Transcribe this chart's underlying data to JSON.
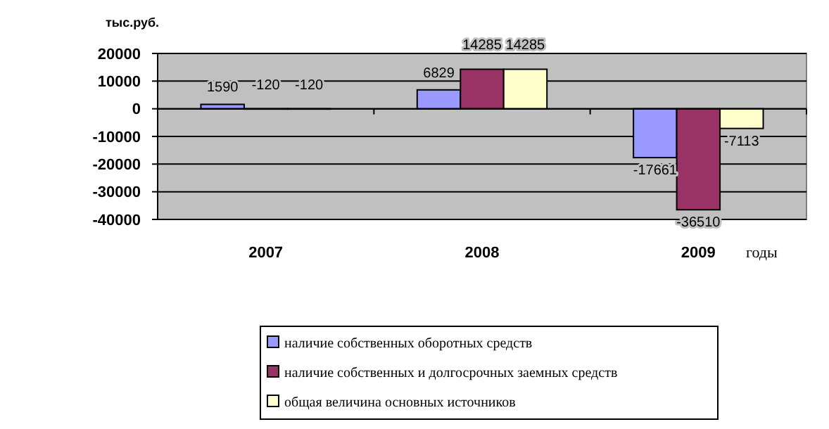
{
  "chart_data": {
    "type": "bar",
    "ylabel": "тыс.руб.",
    "xlabel": "годы",
    "categories": [
      "2007",
      "2008",
      "2009"
    ],
    "series": [
      {
        "name": "наличие собственных оборотных средств",
        "color": "#9999ff",
        "values": [
          1590,
          6829,
          -17661
        ]
      },
      {
        "name": "наличие собственных и долгосрочных заемных средств",
        "color": "#993366",
        "values": [
          -120,
          14285,
          -36510
        ]
      },
      {
        "name": "общая величина основных источников",
        "color": "#ffffcc",
        "values": [
          -120,
          14285,
          -7113
        ]
      }
    ],
    "ylim": [
      -40000,
      20000
    ],
    "yticks": [
      -40000,
      -30000,
      -20000,
      -10000,
      0,
      10000,
      20000
    ],
    "grid": "y",
    "legend": "bottom",
    "data_labels": true
  }
}
